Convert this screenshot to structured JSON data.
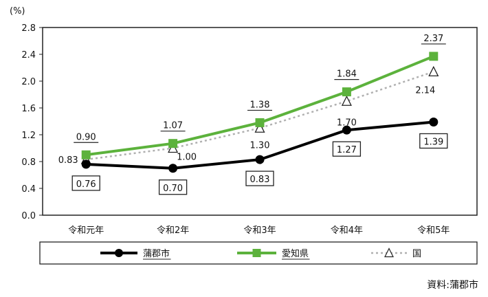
{
  "chart_data": {
    "type": "line",
    "unit": "(%)",
    "categories": [
      "令和元年",
      "令和2年",
      "令和3年",
      "令和4年",
      "令和5年"
    ],
    "ylim": [
      0,
      2.8
    ],
    "yticks": [
      "0.0",
      "0.4",
      "0.8",
      "1.2",
      "1.6",
      "2.0",
      "2.4",
      "2.8"
    ],
    "grid": false,
    "legend_position": "bottom",
    "series": [
      {
        "name": "蒲郡市",
        "values": [
          0.76,
          0.7,
          0.83,
          1.27,
          1.39
        ],
        "labels": [
          "0.76",
          "0.70",
          "0.83",
          "1.27",
          "1.39"
        ],
        "color": "#000000",
        "marker": "circle"
      },
      {
        "name": "愛知県",
        "values": [
          0.9,
          1.07,
          1.38,
          1.84,
          2.37
        ],
        "labels": [
          "0.90",
          "1.07",
          "1.38",
          "1.84",
          "2.37"
        ],
        "color": "#5cb23c",
        "marker": "square"
      },
      {
        "name": "国",
        "values": [
          0.83,
          1.0,
          1.3,
          1.7,
          2.14
        ],
        "labels": [
          "0.83",
          "1.00",
          "1.30",
          "1.70",
          "2.14"
        ],
        "color": "#b0b0b0",
        "marker": "triangle"
      }
    ]
  },
  "source": "資料:蒲郡市"
}
